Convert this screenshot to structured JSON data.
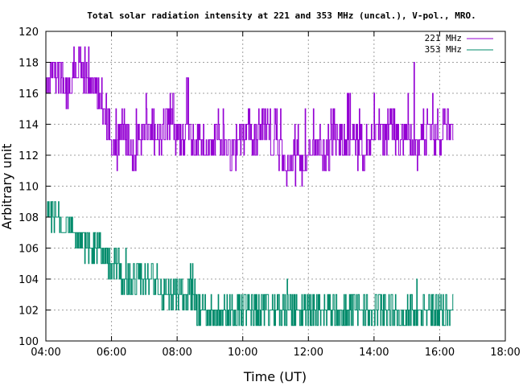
{
  "chart_data": {
    "type": "line",
    "title": "Total solar radiation intensity at 221 and 353 MHz (uncal.), V-pol., MRO.",
    "xlabel": "Time (UT)",
    "ylabel": "Arbitrary unit",
    "xlim": [
      "04:00",
      "18:00"
    ],
    "ylim": [
      100,
      120
    ],
    "x_ticks": [
      "04:00",
      "06:00",
      "08:00",
      "10:00",
      "12:00",
      "14:00",
      "16:00",
      "18:00"
    ],
    "y_ticks": [
      100,
      102,
      104,
      106,
      108,
      110,
      112,
      114,
      116,
      118,
      120
    ],
    "grid": true,
    "legend_position": "top-right",
    "series": [
      {
        "name": "221 MHz",
        "color": "#9400d3",
        "points": [
          [
            "04:00",
            116
          ],
          [
            "04:10",
            117
          ],
          [
            "04:20",
            118
          ],
          [
            "04:30",
            117
          ],
          [
            "04:40",
            116
          ],
          [
            "04:50",
            117
          ],
          [
            "05:00",
            118
          ],
          [
            "05:10",
            117
          ],
          [
            "05:20",
            116
          ],
          [
            "05:30",
            117
          ],
          [
            "05:40",
            115
          ],
          [
            "05:50",
            114
          ],
          [
            "06:00",
            113
          ],
          [
            "06:10",
            112
          ],
          [
            "06:20",
            114
          ],
          [
            "06:30",
            113
          ],
          [
            "06:40",
            112
          ],
          [
            "06:50",
            113
          ],
          [
            "07:00",
            113
          ],
          [
            "07:10",
            114
          ],
          [
            "07:20",
            113
          ],
          [
            "07:30",
            113
          ],
          [
            "07:40",
            114
          ],
          [
            "07:50",
            114
          ],
          [
            "08:00",
            114
          ],
          [
            "08:10",
            113
          ],
          [
            "08:20",
            114
          ],
          [
            "08:30",
            113
          ],
          [
            "08:40",
            113
          ],
          [
            "08:50",
            113
          ],
          [
            "09:00",
            112
          ],
          [
            "09:10",
            113
          ],
          [
            "09:20",
            113
          ],
          [
            "09:30",
            113
          ],
          [
            "09:40",
            112
          ],
          [
            "09:50",
            113
          ],
          [
            "10:00",
            113
          ],
          [
            "10:10",
            114
          ],
          [
            "10:20",
            113
          ],
          [
            "10:30",
            114
          ],
          [
            "10:40",
            114
          ],
          [
            "10:50",
            113
          ],
          [
            "11:00",
            113
          ],
          [
            "11:10",
            112
          ],
          [
            "11:20",
            111
          ],
          [
            "11:30",
            112
          ],
          [
            "11:40",
            112
          ],
          [
            "11:50",
            111
          ],
          [
            "12:00",
            112
          ],
          [
            "12:10",
            112
          ],
          [
            "12:20",
            113
          ],
          [
            "12:30",
            112
          ],
          [
            "12:40",
            113
          ],
          [
            "12:50",
            113
          ],
          [
            "13:00",
            113
          ],
          [
            "13:10",
            113
          ],
          [
            "13:20",
            113
          ],
          [
            "13:30",
            113
          ],
          [
            "13:40",
            112
          ],
          [
            "13:50",
            113
          ],
          [
            "14:00",
            113
          ],
          [
            "14:10",
            114
          ],
          [
            "14:20",
            113
          ],
          [
            "14:30",
            114
          ],
          [
            "14:40",
            114
          ],
          [
            "14:50",
            113
          ],
          [
            "15:00",
            113
          ],
          [
            "15:10",
            113
          ],
          [
            "15:20",
            112
          ],
          [
            "15:30",
            114
          ],
          [
            "15:40",
            114
          ],
          [
            "15:50",
            113
          ],
          [
            "16:00",
            113
          ],
          [
            "16:10",
            114
          ],
          [
            "16:20",
            114
          ],
          [
            "16:25",
            113
          ]
        ],
        "min_points": [
          [
            "04:00",
            116
          ],
          [
            "04:20",
            116
          ],
          [
            "04:40",
            115
          ],
          [
            "05:00",
            116
          ],
          [
            "05:20",
            115
          ],
          [
            "05:40",
            115
          ],
          [
            "06:00",
            112
          ],
          [
            "06:20",
            111
          ],
          [
            "06:40",
            111
          ],
          [
            "07:00",
            111
          ],
          [
            "07:20",
            112
          ],
          [
            "07:40",
            112
          ],
          [
            "08:00",
            112
          ],
          [
            "08:20",
            112
          ],
          [
            "08:40",
            111
          ],
          [
            "09:00",
            112
          ],
          [
            "09:20",
            112
          ],
          [
            "09:40",
            111
          ],
          [
            "10:00",
            112
          ],
          [
            "10:20",
            112
          ],
          [
            "10:40",
            112
          ],
          [
            "11:00",
            112
          ],
          [
            "11:20",
            110
          ],
          [
            "11:40",
            110
          ],
          [
            "12:00",
            111
          ],
          [
            "12:20",
            111
          ],
          [
            "12:40",
            111
          ],
          [
            "13:00",
            112
          ],
          [
            "13:20",
            112
          ],
          [
            "13:40",
            111
          ],
          [
            "14:00",
            112
          ],
          [
            "14:20",
            112
          ],
          [
            "14:40",
            112
          ],
          [
            "15:00",
            112
          ],
          [
            "15:20",
            111
          ],
          [
            "15:40",
            112
          ],
          [
            "16:00",
            112
          ],
          [
            "16:20",
            112
          ]
        ],
        "max_points": [
          [
            "04:00",
            117
          ],
          [
            "04:20",
            119
          ],
          [
            "04:40",
            118
          ],
          [
            "05:00",
            119
          ],
          [
            "05:20",
            119
          ],
          [
            "05:40",
            117
          ],
          [
            "06:00",
            115
          ],
          [
            "06:20",
            116
          ],
          [
            "06:40",
            115
          ],
          [
            "07:00",
            116
          ],
          [
            "07:20",
            115
          ],
          [
            "07:40",
            116
          ],
          [
            "08:00",
            116
          ],
          [
            "08:20",
            117
          ],
          [
            "08:40",
            115
          ],
          [
            "09:00",
            115
          ],
          [
            "09:20",
            115
          ],
          [
            "09:40",
            115
          ],
          [
            "10:00",
            115
          ],
          [
            "10:20",
            115
          ],
          [
            "10:40",
            115
          ],
          [
            "11:00",
            115
          ],
          [
            "11:20",
            115
          ],
          [
            "11:40",
            114
          ],
          [
            "12:00",
            115
          ],
          [
            "12:20",
            115
          ],
          [
            "12:40",
            115
          ],
          [
            "13:00",
            115
          ],
          [
            "13:20",
            116
          ],
          [
            "13:40",
            114
          ],
          [
            "14:00",
            116
          ],
          [
            "14:20",
            115
          ],
          [
            "14:40",
            115
          ],
          [
            "15:00",
            115
          ],
          [
            "15:20",
            119
          ],
          [
            "15:40",
            116
          ],
          [
            "16:00",
            115
          ],
          [
            "16:20",
            115
          ]
        ]
      },
      {
        "name": "353 MHz",
        "color": "#008b6b",
        "points": [
          [
            "04:00",
            108
          ],
          [
            "04:10",
            108
          ],
          [
            "04:20",
            108
          ],
          [
            "04:30",
            107
          ],
          [
            "04:40",
            108
          ],
          [
            "04:50",
            107
          ],
          [
            "05:00",
            107
          ],
          [
            "05:10",
            106
          ],
          [
            "05:20",
            106
          ],
          [
            "05:30",
            106
          ],
          [
            "05:40",
            106
          ],
          [
            "05:50",
            105
          ],
          [
            "06:00",
            105
          ],
          [
            "06:10",
            105
          ],
          [
            "06:20",
            104
          ],
          [
            "06:30",
            104
          ],
          [
            "06:40",
            104
          ],
          [
            "06:50",
            104
          ],
          [
            "07:00",
            104
          ],
          [
            "07:10",
            104
          ],
          [
            "07:20",
            104
          ],
          [
            "07:30",
            103
          ],
          [
            "07:40",
            103
          ],
          [
            "07:50",
            103
          ],
          [
            "08:00",
            103
          ],
          [
            "08:10",
            103
          ],
          [
            "08:20",
            103
          ],
          [
            "08:30",
            103
          ],
          [
            "08:40",
            102
          ],
          [
            "08:50",
            102
          ],
          [
            "09:00",
            102
          ],
          [
            "09:10",
            102
          ],
          [
            "09:20",
            102
          ],
          [
            "09:30",
            102
          ],
          [
            "09:40",
            102
          ],
          [
            "09:50",
            102
          ],
          [
            "10:00",
            102
          ],
          [
            "10:10",
            102
          ],
          [
            "10:20",
            102
          ],
          [
            "10:30",
            102
          ],
          [
            "10:40",
            102
          ],
          [
            "10:50",
            102
          ],
          [
            "11:00",
            102
          ],
          [
            "11:10",
            102
          ],
          [
            "11:20",
            102
          ],
          [
            "11:30",
            102
          ],
          [
            "11:40",
            102
          ],
          [
            "11:50",
            102
          ],
          [
            "12:00",
            102
          ],
          [
            "12:10",
            102
          ],
          [
            "12:20",
            102
          ],
          [
            "12:30",
            102
          ],
          [
            "12:40",
            102
          ],
          [
            "12:50",
            102
          ],
          [
            "13:00",
            102
          ],
          [
            "13:10",
            101
          ],
          [
            "13:20",
            102
          ],
          [
            "13:30",
            102
          ],
          [
            "13:40",
            102
          ],
          [
            "13:50",
            102
          ],
          [
            "14:00",
            102
          ],
          [
            "14:10",
            102
          ],
          [
            "14:20",
            102
          ],
          [
            "14:30",
            102
          ],
          [
            "14:40",
            102
          ],
          [
            "14:50",
            101
          ],
          [
            "15:00",
            102
          ],
          [
            "15:10",
            102
          ],
          [
            "15:20",
            102
          ],
          [
            "15:30",
            102
          ],
          [
            "15:40",
            102
          ],
          [
            "15:50",
            102
          ],
          [
            "16:00",
            102
          ],
          [
            "16:10",
            102
          ],
          [
            "16:20",
            102
          ],
          [
            "16:25",
            102
          ]
        ],
        "min_points": [
          [
            "04:00",
            108
          ],
          [
            "04:20",
            107
          ],
          [
            "04:40",
            107
          ],
          [
            "05:00",
            106
          ],
          [
            "05:20",
            105
          ],
          [
            "05:40",
            105
          ],
          [
            "06:00",
            104
          ],
          [
            "06:20",
            103
          ],
          [
            "06:40",
            103
          ],
          [
            "07:00",
            103
          ],
          [
            "07:20",
            103
          ],
          [
            "07:40",
            102
          ],
          [
            "08:00",
            102
          ],
          [
            "08:20",
            102
          ],
          [
            "08:40",
            101
          ],
          [
            "09:00",
            101
          ],
          [
            "09:20",
            101
          ],
          [
            "09:40",
            101
          ],
          [
            "10:00",
            101
          ],
          [
            "10:20",
            101
          ],
          [
            "10:40",
            101
          ],
          [
            "11:00",
            101
          ],
          [
            "11:20",
            101
          ],
          [
            "11:40",
            101
          ],
          [
            "12:00",
            101
          ],
          [
            "12:20",
            101
          ],
          [
            "12:40",
            101
          ],
          [
            "13:00",
            101
          ],
          [
            "13:20",
            101
          ],
          [
            "13:40",
            101
          ],
          [
            "14:00",
            101
          ],
          [
            "14:20",
            101
          ],
          [
            "14:40",
            101
          ],
          [
            "15:00",
            101
          ],
          [
            "15:20",
            101
          ],
          [
            "15:40",
            101
          ],
          [
            "16:00",
            101
          ],
          [
            "16:20",
            101
          ]
        ],
        "max_points": [
          [
            "04:00",
            109
          ],
          [
            "04:20",
            109
          ],
          [
            "04:40",
            108
          ],
          [
            "05:00",
            107
          ],
          [
            "05:20",
            107
          ],
          [
            "05:40",
            107
          ],
          [
            "06:00",
            106
          ],
          [
            "06:20",
            106
          ],
          [
            "06:40",
            105
          ],
          [
            "07:00",
            105
          ],
          [
            "07:20",
            105
          ],
          [
            "07:40",
            104
          ],
          [
            "08:00",
            104
          ],
          [
            "08:20",
            105
          ],
          [
            "08:40",
            104
          ],
          [
            "09:00",
            103
          ],
          [
            "09:20",
            103
          ],
          [
            "09:40",
            103
          ],
          [
            "10:00",
            103
          ],
          [
            "10:20",
            103
          ],
          [
            "10:40",
            103
          ],
          [
            "11:00",
            103
          ],
          [
            "11:20",
            104
          ],
          [
            "11:40",
            103
          ],
          [
            "12:00",
            103
          ],
          [
            "12:20",
            103
          ],
          [
            "12:40",
            103
          ],
          [
            "13:00",
            103
          ],
          [
            "13:20",
            103
          ],
          [
            "13:40",
            103
          ],
          [
            "14:00",
            103
          ],
          [
            "14:20",
            103
          ],
          [
            "14:40",
            103
          ],
          [
            "15:00",
            103
          ],
          [
            "15:20",
            104
          ],
          [
            "15:40",
            103
          ],
          [
            "16:00",
            103
          ],
          [
            "16:20",
            103
          ]
        ]
      }
    ]
  }
}
